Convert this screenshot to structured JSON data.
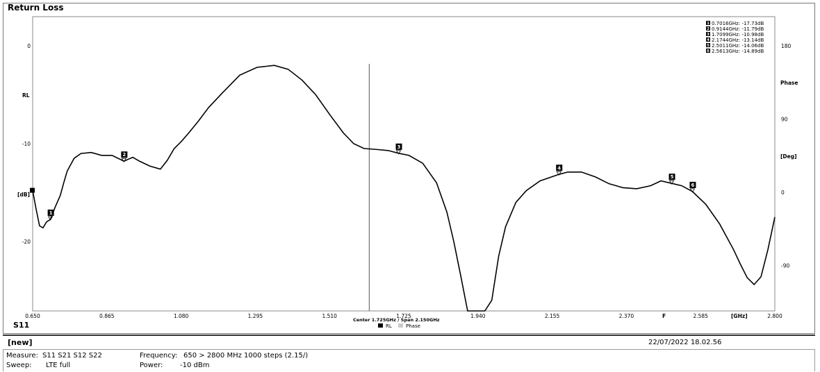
{
  "title": "Return Loss",
  "trace_label": "S11",
  "chart_data": {
    "type": "line",
    "title": "Return Loss",
    "x_unit": "[GHz]",
    "x_range": [
      0.65,
      2.8
    ],
    "x_ticks": [
      "0.650",
      "0.865",
      "1.080",
      "1.295",
      "1.510",
      "1.725",
      "1.940",
      "2.155",
      "2.370",
      "2.585",
      "2.800"
    ],
    "freq_marker_label": "F",
    "y_left_label": "RL",
    "y_left_unit": "[dB]",
    "y_left_range": [
      -26,
      4.5
    ],
    "y_left_ticks": [
      "0",
      "-10",
      "-20"
    ],
    "y_right_label": "Phase",
    "y_right_unit": "[Deg]",
    "y_right_ticks": [
      "180",
      "90",
      "0",
      "-90"
    ],
    "center_span": "Center 1.725GHz / Span 2.150GHz",
    "center_line_x": 1.625,
    "grid": false,
    "legend": [
      {
        "name": "RL",
        "color": "#000000"
      },
      {
        "name": "Phase",
        "color": "#cccccc"
      }
    ],
    "series": [
      {
        "name": "RL",
        "color": "#000000",
        "x": [
          0.65,
          0.66,
          0.67,
          0.68,
          0.69,
          0.7016,
          0.715,
          0.73,
          0.74,
          0.75,
          0.77,
          0.79,
          0.82,
          0.85,
          0.88,
          0.9144,
          0.94,
          0.96,
          0.99,
          1.02,
          1.04,
          1.06,
          1.08,
          1.1,
          1.13,
          1.16,
          1.2,
          1.25,
          1.3,
          1.35,
          1.39,
          1.43,
          1.47,
          1.51,
          1.55,
          1.58,
          1.61,
          1.65,
          1.68,
          1.7099,
          1.74,
          1.78,
          1.82,
          1.85,
          1.87,
          1.89,
          1.91,
          1.925,
          1.945,
          1.96,
          1.98,
          2.0,
          2.02,
          2.05,
          2.08,
          2.12,
          2.1744,
          2.2,
          2.24,
          2.28,
          2.32,
          2.36,
          2.4,
          2.44,
          2.47,
          2.5011,
          2.53,
          2.5613,
          2.6,
          2.64,
          2.68,
          2.7,
          2.72,
          2.74,
          2.76,
          2.78,
          2.8
        ],
        "y": [
          -14.8,
          -16.7,
          -18.4,
          -18.6,
          -18.0,
          -17.73,
          -16.5,
          -15.3,
          -14.0,
          -12.8,
          -11.5,
          -11.0,
          -10.9,
          -11.2,
          -11.2,
          -11.79,
          -11.4,
          -11.8,
          -12.3,
          -12.6,
          -11.7,
          -10.5,
          -9.8,
          -9.0,
          -7.7,
          -6.3,
          -4.8,
          -3.0,
          -2.2,
          -2.0,
          -2.4,
          -3.5,
          -5.0,
          -7.0,
          -8.9,
          -10.0,
          -10.5,
          -10.6,
          -10.7,
          -10.98,
          -11.2,
          -12.0,
          -14.0,
          -17.0,
          -20.0,
          -23.5,
          -27.5,
          -30.5,
          -34.0,
          -31.0,
          -26.0,
          -21.5,
          -18.5,
          -16.0,
          -14.8,
          -13.8,
          -13.14,
          -12.9,
          -12.9,
          -13.4,
          -14.1,
          -14.5,
          -14.6,
          -14.3,
          -13.8,
          -14.06,
          -14.3,
          -14.89,
          -16.2,
          -18.2,
          -20.8,
          -22.3,
          -23.7,
          -24.4,
          -23.6,
          -20.8,
          -17.5
        ],
        "markers": [
          {
            "id": "1",
            "label": "0.7016GHz: -17.73dB",
            "x": 0.7016,
            "y": -17.73
          },
          {
            "id": "2",
            "label": "0.9144GHz: -11.79dB",
            "x": 0.9144,
            "y": -11.79
          },
          {
            "id": "3",
            "label": "1.7099GHz: -10.98dB",
            "x": 1.7099,
            "y": -10.98
          },
          {
            "id": "4",
            "label": "2.1744GHz: -13.14dB",
            "x": 2.1744,
            "y": -13.14
          },
          {
            "id": "5",
            "label": "2.5011GHz: -14.06dB",
            "x": 2.5011,
            "y": -14.06
          },
          {
            "id": "6",
            "label": "2.5613GHz: -14.89dB",
            "x": 2.5613,
            "y": -14.89
          }
        ]
      }
    ]
  },
  "footer": {
    "name": "[new]",
    "datetime": "22/07/2022 18.02.56",
    "measure_label": "Measure:",
    "measure_value": "S11 S21 S12 S22",
    "frequency_label": "Frequency:",
    "frequency_value": "650 > 2800 MHz 1000 steps (2.15/)",
    "sweep_label": "Sweep:",
    "sweep_value": "LTE full",
    "power_label": "Power:",
    "power_value": "-10 dBm"
  }
}
